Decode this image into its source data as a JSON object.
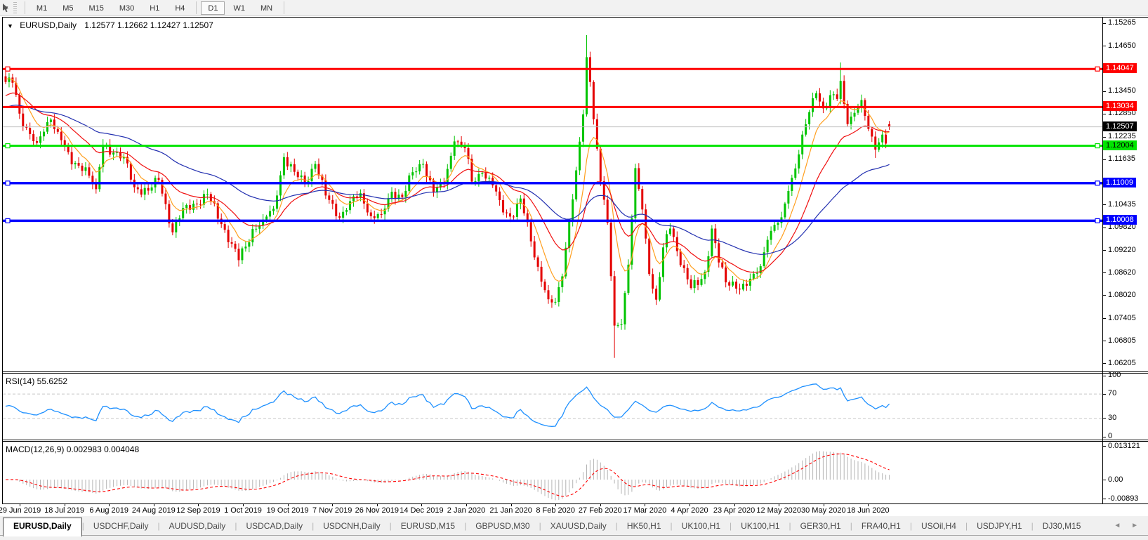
{
  "toolbar": {
    "timeframes": [
      {
        "label": "M1",
        "active": false
      },
      {
        "label": "M5",
        "active": false
      },
      {
        "label": "M15",
        "active": false
      },
      {
        "label": "M30",
        "active": false
      },
      {
        "label": "H1",
        "active": false
      },
      {
        "label": "H4",
        "active": false
      },
      {
        "label": "D1",
        "active": true
      },
      {
        "label": "W1",
        "active": false
      },
      {
        "label": "MN",
        "active": false
      }
    ],
    "dropdown_caret": "▼"
  },
  "chart": {
    "collapse_icon": "▼",
    "title_symbol": "EURUSD,Daily",
    "quote": "1.12577 1.12662 1.12427 1.12507"
  },
  "rsi_panel": {
    "label": "RSI(14) 55.6252",
    "axis_labels": [
      {
        "v": 100,
        "t": "100"
      },
      {
        "v": 70,
        "t": "70"
      },
      {
        "v": 30,
        "t": "30"
      },
      {
        "v": 0,
        "t": "0"
      }
    ],
    "levels": [
      70,
      30
    ]
  },
  "macd_panel": {
    "label": "MACD(12,26,9) 0.002983 0.004048",
    "axis_labels": [
      {
        "v": 0.013121,
        "t": "0.013121"
      },
      {
        "v": 0,
        "t": "0.00"
      },
      {
        "v": -0.00893,
        "t": "-0.00893"
      }
    ]
  },
  "price_axis": {
    "ticks": [
      "1.15265",
      "1.14650",
      "1.13450",
      "1.12850",
      "1.12235",
      "1.11635",
      "1.10435",
      "1.09820",
      "1.09220",
      "1.08620",
      "1.08020",
      "1.07405",
      "1.06805",
      "1.06205"
    ],
    "line_labels": [
      {
        "text": "1.14047",
        "bg": "#FF0000",
        "fg": "#FFFFFF"
      },
      {
        "text": "1.13034",
        "bg": "#FF0000",
        "fg": "#FFFFFF"
      },
      {
        "text": "1.12507",
        "bg": "#000000",
        "fg": "#FFFFFF"
      },
      {
        "text": "1.12004",
        "bg": "#00E400",
        "fg": "#000000"
      },
      {
        "text": "1.11009",
        "bg": "#0000FF",
        "fg": "#FFFFFF"
      },
      {
        "text": "1.10008",
        "bg": "#0000FF",
        "fg": "#FFFFFF"
      }
    ]
  },
  "date_axis": {
    "labels": [
      "29 Jun 2019",
      "18 Jul 2019",
      "6 Aug 2019",
      "24 Aug 2019",
      "12 Sep 2019",
      "1 Oct 2019",
      "19 Oct 2019",
      "7 Nov 2019",
      "26 Nov 2019",
      "14 Dec 2019",
      "2 Jan 2020",
      "21 Jan 2020",
      "8 Feb 2020",
      "27 Feb 2020",
      "17 Mar 2020",
      "4 Apr 2020",
      "23 Apr 2020",
      "12 May 2020",
      "30 May 2020",
      "18 Jun 2020"
    ]
  },
  "tabs": {
    "items": [
      {
        "label": "EURUSD,Daily",
        "active": true
      },
      {
        "label": "USDCHF,Daily",
        "active": false
      },
      {
        "label": "AUDUSD,Daily",
        "active": false
      },
      {
        "label": "USDCAD,Daily",
        "active": false
      },
      {
        "label": "USDCNH,Daily",
        "active": false
      },
      {
        "label": "EURUSD,M15",
        "active": false
      },
      {
        "label": "GBPUSD,M30",
        "active": false
      },
      {
        "label": "XAUUSD,Daily",
        "active": false
      },
      {
        "label": "HK50,H1",
        "active": false
      },
      {
        "label": "UK100,H1",
        "active": false
      },
      {
        "label": "UK100,H1",
        "active": false
      },
      {
        "label": "GER30,H1",
        "active": false
      },
      {
        "label": "FRA40,H1",
        "active": false
      },
      {
        "label": "USOil,H4",
        "active": false
      },
      {
        "label": "USDJPY,H1",
        "active": false
      },
      {
        "label": "DJ30,M15",
        "active": false
      }
    ],
    "scroll_left_icon": "◄",
    "scroll_right_icon": "►"
  },
  "chart_data": {
    "type": "candlestick",
    "symbol": "EURUSD",
    "timeframe": "Daily",
    "last_quote": {
      "open": 1.12577,
      "high": 1.12662,
      "low": 1.12427,
      "close": 1.12507
    },
    "ylim": [
      1.06,
      1.1542
    ],
    "bars": 255,
    "anchors": [
      [
        0,
        1.137
      ],
      [
        2,
        1.1368
      ],
      [
        4,
        1.1286
      ],
      [
        6,
        1.1248
      ],
      [
        9,
        1.1208
      ],
      [
        13,
        1.127
      ],
      [
        16,
        1.1215
      ],
      [
        19,
        1.1151
      ],
      [
        23,
        1.1143
      ],
      [
        26,
        1.1085
      ],
      [
        28,
        1.1203
      ],
      [
        31,
        1.1182
      ],
      [
        34,
        1.1171
      ],
      [
        37,
        1.109
      ],
      [
        41,
        1.1081
      ],
      [
        44,
        1.111
      ],
      [
        48,
        1.097
      ],
      [
        51,
        1.1035
      ],
      [
        55,
        1.1045
      ],
      [
        58,
        1.1072
      ],
      [
        62,
        1.0992
      ],
      [
        65,
        1.094
      ],
      [
        67,
        1.0896
      ],
      [
        69,
        1.0932
      ],
      [
        71,
        1.0979
      ],
      [
        74,
        1.1004
      ],
      [
        77,
        1.1033
      ],
      [
        80,
        1.117
      ],
      [
        83,
        1.1131
      ],
      [
        86,
        1.11
      ],
      [
        89,
        1.1152
      ],
      [
        92,
        1.1068
      ],
      [
        96,
        1.1009
      ],
      [
        99,
        1.1053
      ],
      [
        102,
        1.1074
      ],
      [
        105,
        1.1013
      ],
      [
        108,
        1.1018
      ],
      [
        111,
        1.1078
      ],
      [
        114,
        1.1064
      ],
      [
        117,
        1.113
      ],
      [
        120,
        1.1152
      ],
      [
        123,
        1.1076
      ],
      [
        126,
        1.1099
      ],
      [
        129,
        1.1212
      ],
      [
        132,
        1.1194
      ],
      [
        134,
        1.1105
      ],
      [
        137,
        1.1128
      ],
      [
        140,
        1.1095
      ],
      [
        143,
        1.1023
      ],
      [
        146,
        1.1011
      ],
      [
        148,
        1.106
      ],
      [
        151,
        1.0946
      ],
      [
        154,
        1.0839
      ],
      [
        156,
        1.0792
      ],
      [
        158,
        1.0785
      ],
      [
        160,
        1.0853
      ],
      [
        162,
        1.1
      ],
      [
        164,
        1.1135
      ],
      [
        166,
        1.1284
      ],
      [
        167,
        1.1436
      ],
      [
        168,
        1.137
      ],
      [
        169,
        1.1271
      ],
      [
        171,
        1.1106
      ],
      [
        173,
        1.0996
      ],
      [
        175,
        1.0722
      ],
      [
        177,
        1.0725
      ],
      [
        179,
        1.0884
      ],
      [
        181,
        1.1141
      ],
      [
        183,
        1.1031
      ],
      [
        185,
        1.0859
      ],
      [
        187,
        1.0791
      ],
      [
        189,
        1.093
      ],
      [
        191,
        1.098
      ],
      [
        193,
        1.092
      ],
      [
        195,
        1.0875
      ],
      [
        197,
        1.0822
      ],
      [
        199,
        1.083
      ],
      [
        201,
        1.0865
      ],
      [
        203,
        1.098
      ],
      [
        205,
        1.089
      ],
      [
        207,
        1.0837
      ],
      [
        209,
        1.0839
      ],
      [
        211,
        1.0818
      ],
      [
        213,
        1.0828
      ],
      [
        215,
        1.086
      ],
      [
        217,
        1.088
      ],
      [
        219,
        1.095
      ],
      [
        221,
        1.099
      ],
      [
        223,
        1.101
      ],
      [
        225,
        1.108
      ],
      [
        227,
        1.114
      ],
      [
        229,
        1.123
      ],
      [
        231,
        1.129
      ],
      [
        233,
        1.134
      ],
      [
        235,
        1.13
      ],
      [
        237,
        1.1335
      ],
      [
        239,
        1.1325
      ],
      [
        240,
        1.1373
      ],
      [
        242,
        1.1258
      ],
      [
        244,
        1.1288
      ],
      [
        246,
        1.1322
      ],
      [
        248,
        1.1245
      ],
      [
        250,
        1.119
      ],
      [
        252,
        1.123
      ],
      [
        253,
        1.1206
      ],
      [
        254,
        1.12507
      ]
    ],
    "overrides": {
      "0": {
        "h": 1.14
      },
      "67": {
        "l": 1.0879
      },
      "167": {
        "h": 1.1495
      },
      "175": {
        "l": 1.0636
      },
      "240": {
        "h": 1.1422
      },
      "250": {
        "l": 1.1168
      },
      "254": {
        "o": 1.12577,
        "h": 1.12662,
        "l": 1.12427
      }
    },
    "noise": {
      "a1": 0.0011,
      "f1": 2.23,
      "a2": 0.0006,
      "f2": 0.77,
      "wick_base": 0.0004,
      "wick_amp": 0.0011
    },
    "colors": {
      "bull": "#00C400",
      "bear": "#E40000",
      "bg": "#FFFFFF",
      "frame": "#000000",
      "current_line": "#C0C0C0",
      "rsi_line": "#1E90FF",
      "macd_bar": "#B4B4B4",
      "macd_signal": "#FF0000"
    },
    "moving_averages": [
      {
        "name": "fast",
        "period": 8,
        "seed": 1.138,
        "color": "#FF9F1F"
      },
      {
        "name": "mid",
        "period": 21,
        "seed": 1.133,
        "color": "#F01010"
      },
      {
        "name": "slow",
        "period": 55,
        "seed": 1.13,
        "color": "#2330B0"
      }
    ],
    "horizontal_lines": [
      {
        "price": 1.14047,
        "color": "#FF0000",
        "width": 3,
        "handles": true
      },
      {
        "price": 1.13034,
        "color": "#FF0000",
        "width": 3,
        "handles": false
      },
      {
        "price": 1.12004,
        "color": "#00E400",
        "width": 3,
        "handles": true
      },
      {
        "price": 1.11009,
        "color": "#0000FF",
        "width": 3.5,
        "handles": true
      },
      {
        "price": 1.10008,
        "color": "#0000FF",
        "width": 3.5,
        "handles": true
      }
    ],
    "current_price": 1.12507,
    "rsi": {
      "period": 14,
      "value": 55.6252,
      "levels": [
        70,
        30
      ],
      "range": [
        0,
        100
      ]
    },
    "macd": {
      "fast": 12,
      "slow": 26,
      "signal": 9,
      "values": [
        0.002983,
        0.004048
      ],
      "axis_max": 0.013121,
      "axis_min": -0.00893
    }
  }
}
